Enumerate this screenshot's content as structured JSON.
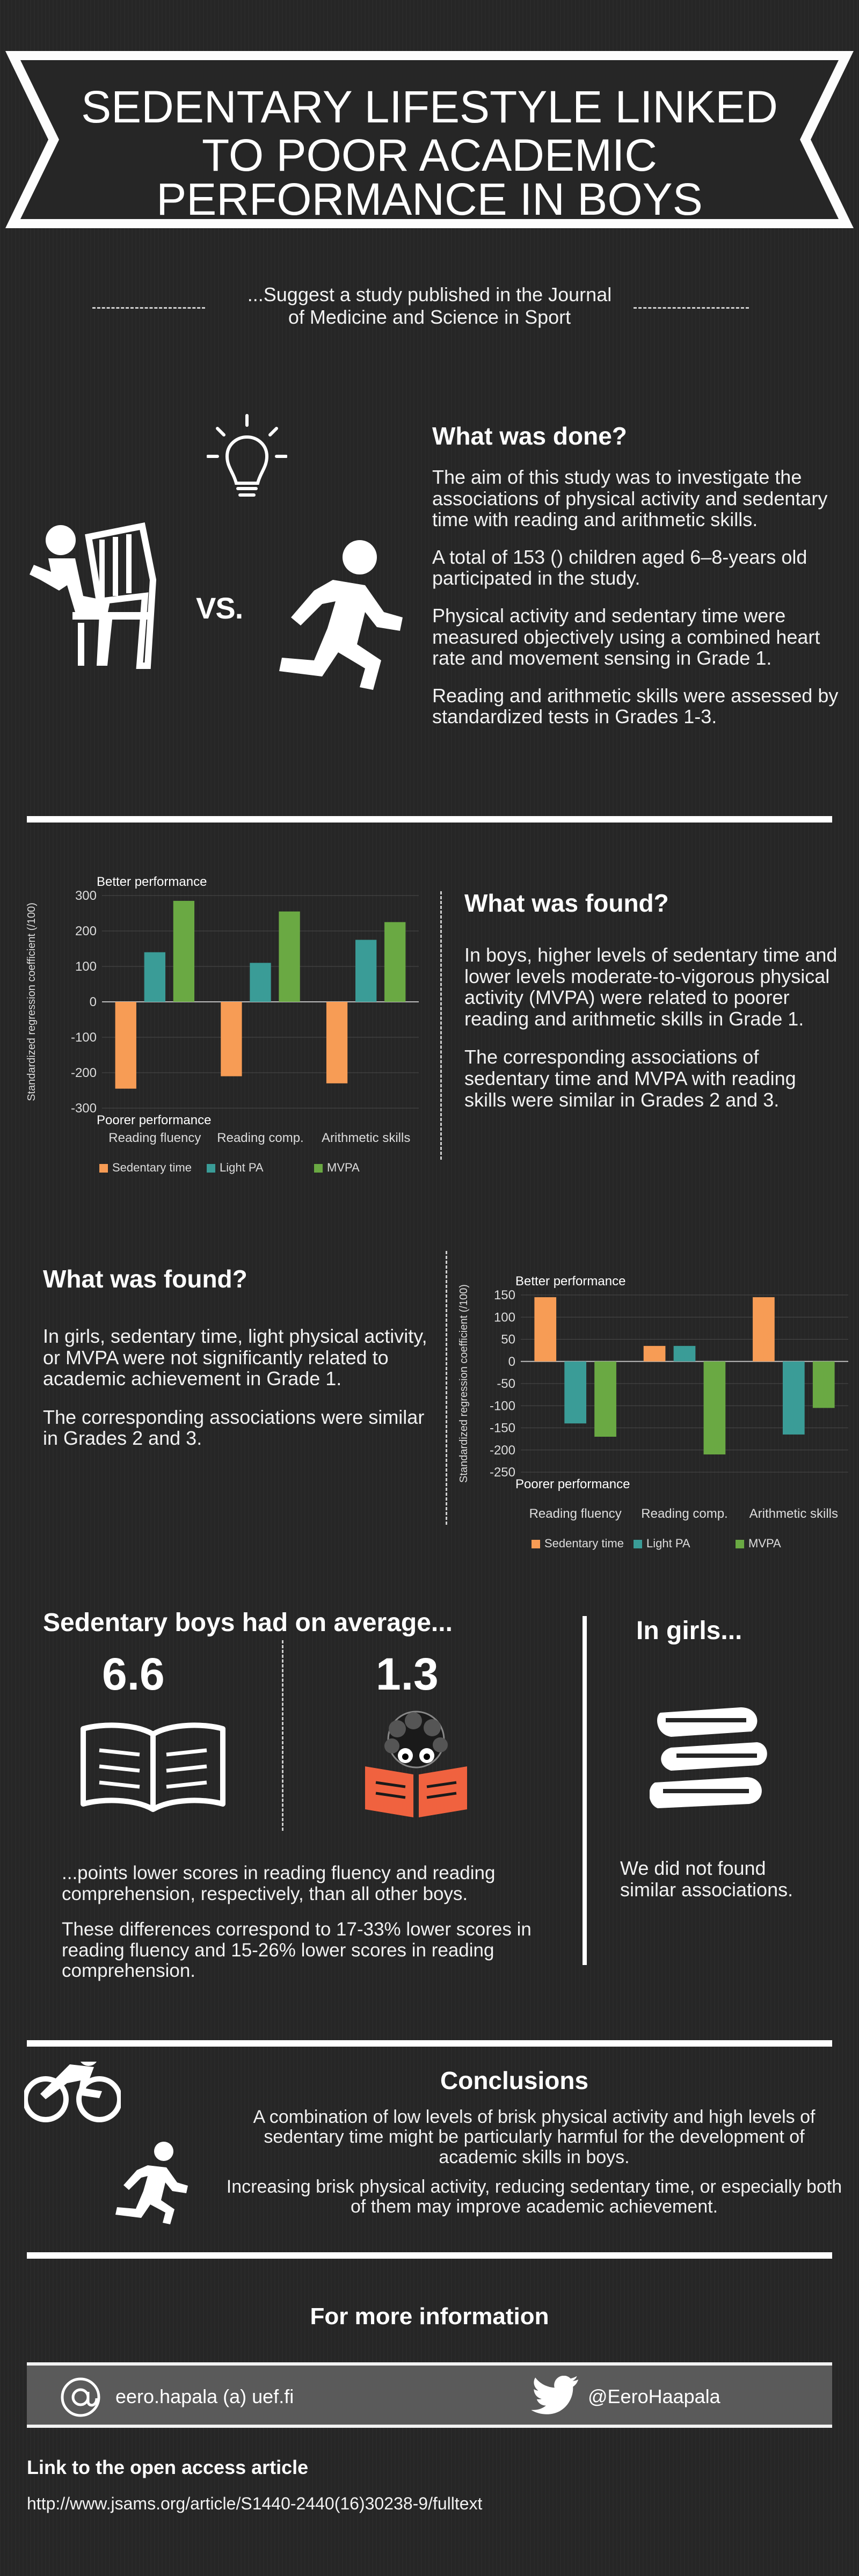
{
  "header": {
    "title_lines": [
      "SEDENTARY LIFESTYLE LINKED",
      "TO POOR ACADEMIC",
      "PERFORMANCE IN BOYS"
    ],
    "subtitle": "...Suggest a study published in the Journal of Medicine and Science in Sport"
  },
  "done": {
    "vs": "VS.",
    "heading": "What was done?",
    "paragraphs": [
      "The aim of this study was to investigate the associations of physical activity and sedentary time with reading and arithmetic skills.",
      "A total of 153 () children aged 6–8-years old participated in the study.",
      "Physical activity and sedentary time were measured objectively using a combined heart rate and movement sensing in Grade 1.",
      "Reading and arithmetic skills were assessed by standardized tests in Grades 1-3."
    ]
  },
  "found_boys": {
    "heading": "What was found?",
    "paragraphs": [
      "In boys, higher levels of sedentary time and lower levels moderate-to-vigorous physical activity (MVPA) were related to poorer reading and arithmetic skills in Grade 1.",
      "The corresponding associations of sedentary time and MVPA with reading skills were similar in Grades 2 and 3."
    ]
  },
  "found_girls": {
    "heading": "What was found?",
    "paragraphs": [
      "In girls, sedentary time, light physical activity, or MVPA were not significantly related to academic achievement in Grade 1.",
      "The corresponding associations were similar in Grades 2 and 3."
    ]
  },
  "chart_data": [
    {
      "type": "bar",
      "title": "",
      "ylabel": "Standardized regression coefficient (/100)",
      "top_note": "Better performance",
      "bottom_note": "Poorer performance",
      "categories": [
        "Reading fluency",
        "Reading comp.",
        "Arithmetic skills"
      ],
      "ylim": [
        -300,
        300
      ],
      "yticks": [
        300,
        200,
        100,
        0,
        -100,
        -200,
        -300
      ],
      "grid": true,
      "legend_position": "bottom",
      "series": [
        {
          "name": "Sedentary time",
          "color": "#f79c55",
          "values": [
            -245,
            -210,
            -230
          ]
        },
        {
          "name": "Light PA",
          "color": "#3a9c97",
          "values": [
            140,
            110,
            175
          ]
        },
        {
          "name": "MVPA",
          "color": "#6aa943",
          "values": [
            285,
            255,
            225
          ]
        }
      ]
    },
    {
      "type": "bar",
      "title": "",
      "ylabel": "Standardized regression coefficient (/100)",
      "top_note": "Better performance",
      "bottom_note": "Poorer performance",
      "categories": [
        "Reading fluency",
        "Reading comp.",
        "Arithmetic skills"
      ],
      "ylim": [
        -250,
        150
      ],
      "yticks": [
        150,
        100,
        50,
        0,
        -50,
        -100,
        -150,
        -200,
        -250
      ],
      "grid": true,
      "legend_position": "bottom",
      "series": [
        {
          "name": "Sedentary time",
          "color": "#f79c55",
          "values": [
            145,
            35,
            145
          ]
        },
        {
          "name": "Light PA",
          "color": "#3a9c97",
          "values": [
            -140,
            35,
            -165
          ]
        },
        {
          "name": "MVPA",
          "color": "#6aa943",
          "values": [
            -170,
            -210,
            -105
          ]
        }
      ]
    }
  ],
  "stats": {
    "boys_heading": "Sedentary boys had on average...",
    "reading_value": "6.6",
    "comp_value": "1.3",
    "caption1": "...points lower scores in reading fluency and reading comprehension, respectively, than all other boys.",
    "caption2": "These differences correspond to 17-33% lower scores in reading fluency and 15-26% lower scores in reading comprehension.",
    "girls_heading": "In girls...",
    "girls_text": "We did not found similar associations."
  },
  "conclusions": {
    "heading": "Conclusions",
    "p1": "A combination of low levels of brisk physical activity and high levels of sedentary time might be particularly harmful for the development of academic skills in boys.",
    "p2": "Increasing brisk physical activity, reducing sedentary time, or especially both of them may improve academic achievement."
  },
  "info": {
    "heading": "For more information",
    "email": "eero.hapala (a) uef.fi",
    "twitter": "@EeroHaapala",
    "link_heading": "Link to the open access article",
    "url": "http://www.jsams.org/article/S1440-2440(16)30238-9/fulltext"
  },
  "colors": {
    "background": "#262626",
    "sedentary": "#f79c55",
    "light_pa": "#3a9c97",
    "mvpa": "#6aa943",
    "info_bar": "#5a5a5a",
    "reader_book": "#f0623f"
  },
  "icons": [
    "lightbulb-icon",
    "sitting-chair-icon",
    "running-person-icon",
    "open-book-icon",
    "reading-person-icon",
    "book-stack-icon",
    "cyclist-icon",
    "runner-icon",
    "at-sign-icon",
    "twitter-bird-icon"
  ]
}
